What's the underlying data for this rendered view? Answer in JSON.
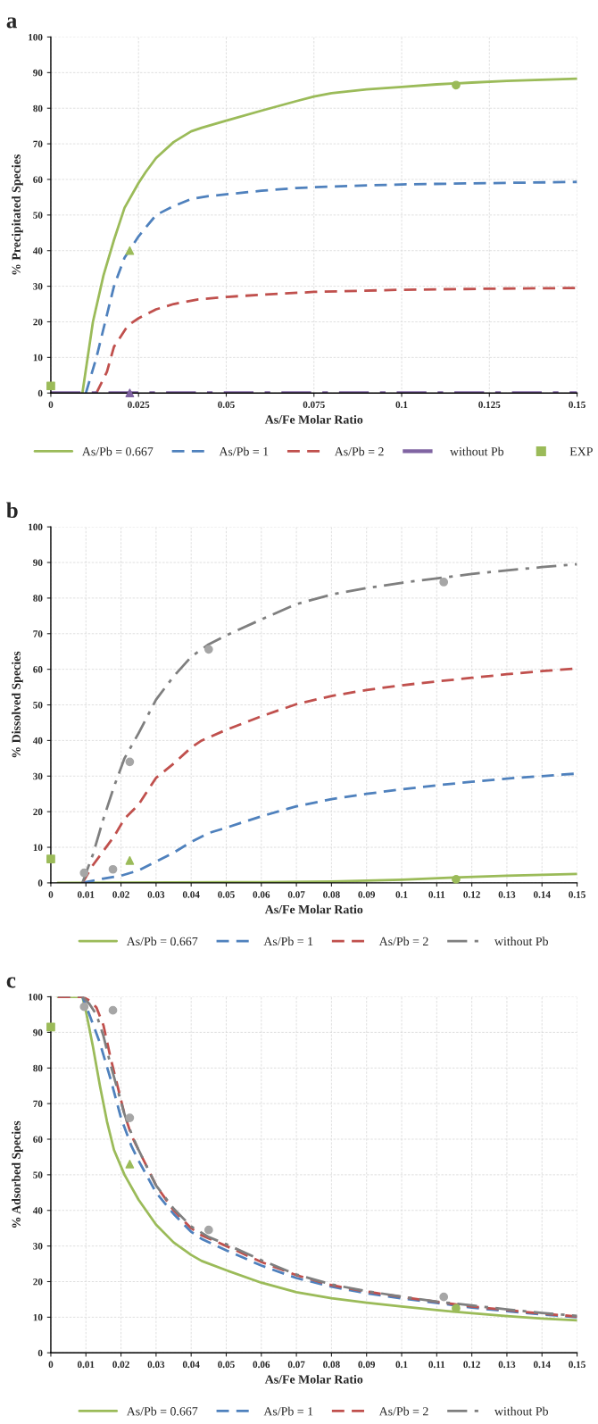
{
  "chart_data": [
    {
      "type": "line",
      "title": "a",
      "xlabel": "As/Fe Molar Ratio",
      "ylabel": "% Precipitated Species",
      "xlim": [
        0,
        0.15
      ],
      "ylim": [
        0,
        100
      ],
      "xticks": [
        0,
        0.025,
        0.05,
        0.075,
        0.1,
        0.125,
        0.15
      ],
      "yticks": [
        0,
        10,
        20,
        30,
        40,
        50,
        60,
        70,
        80,
        90,
        100
      ],
      "grid": true,
      "legend": "bottom",
      "series": [
        {
          "name": "As/Pb = 0.667",
          "color": "#9bbb59",
          "line_style": "solid",
          "x": [
            0.009,
            0.012,
            0.015,
            0.018,
            0.021,
            0.025,
            0.027,
            0.03,
            0.035,
            0.04,
            0.043,
            0.05,
            0.06,
            0.07,
            0.075,
            0.08,
            0.09,
            0.1,
            0.11,
            0.12,
            0.13,
            0.14,
            0.15
          ],
          "values": [
            0,
            20,
            33,
            43,
            52,
            59,
            62,
            66,
            70.5,
            73.5,
            74.5,
            76.5,
            79.3,
            82,
            83.3,
            84.2,
            85.3,
            86,
            86.7,
            87.2,
            87.7,
            88,
            88.3
          ]
        },
        {
          "name": "As/Pb = 1",
          "color": "#4f81bd",
          "line_style": "dashed",
          "x": [
            0.01,
            0.013,
            0.016,
            0.018,
            0.021,
            0.025,
            0.03,
            0.035,
            0.04,
            0.045,
            0.05,
            0.06,
            0.07,
            0.08,
            0.1,
            0.12,
            0.15
          ],
          "values": [
            0,
            10,
            22,
            30,
            38,
            44,
            50,
            52.5,
            54.5,
            55.3,
            55.8,
            56.8,
            57.6,
            58,
            58.6,
            58.9,
            59.3
          ]
        },
        {
          "name": "As/Pb = 2",
          "color": "#c0504d",
          "line_style": "dashed",
          "x": [
            0.013,
            0.016,
            0.018,
            0.02,
            0.022,
            0.025,
            0.03,
            0.035,
            0.042,
            0.05,
            0.06,
            0.075,
            0.1,
            0.125,
            0.15
          ],
          "values": [
            0,
            6,
            13,
            16,
            19,
            21,
            23.5,
            25,
            26.3,
            27,
            27.6,
            28.4,
            29,
            29.3,
            29.5
          ]
        },
        {
          "name": "without Pb",
          "color": "#8064a2",
          "line_style": "dashdot",
          "x": [
            0,
            0.15
          ],
          "values": [
            0,
            0
          ]
        },
        {
          "name": "EXP",
          "type": "scatter",
          "marker": "square",
          "color": "#9bbb59",
          "x": [
            0
          ],
          "values": [
            2
          ]
        },
        {
          "type": "scatter",
          "marker": "triangle",
          "color": "#9bbb59",
          "x": [
            0.0225
          ],
          "values": [
            40
          ]
        },
        {
          "type": "scatter",
          "marker": "circle",
          "color": "#9bbb59",
          "x": [
            0.1155
          ],
          "values": [
            86.5
          ]
        },
        {
          "type": "scatter",
          "marker": "triangle",
          "color": "#8064a2",
          "x": [
            0.0225
          ],
          "values": [
            0
          ]
        }
      ]
    },
    {
      "type": "line",
      "title": "b",
      "xlabel": "As/Fe Molar Ratio",
      "ylabel": "% Dissolved Species",
      "xlim": [
        0,
        0.15
      ],
      "ylim": [
        0,
        100
      ],
      "xticks": [
        0,
        0.01,
        0.02,
        0.03,
        0.04,
        0.05,
        0.06,
        0.07,
        0.08,
        0.09,
        0.1,
        0.11,
        0.12,
        0.13,
        0.14,
        0.15
      ],
      "yticks": [
        0,
        10,
        20,
        30,
        40,
        50,
        60,
        70,
        80,
        90,
        100
      ],
      "grid": true,
      "legend": "bottom",
      "series": [
        {
          "name": "As/Pb = 0.667",
          "color": "#9bbb59",
          "line_style": "solid",
          "x": [
            0.002,
            0.06,
            0.08,
            0.1,
            0.115,
            0.13,
            0.15
          ],
          "values": [
            0,
            0.2,
            0.4,
            0.9,
            1.5,
            2,
            2.5
          ]
        },
        {
          "name": "As/Pb = 1",
          "color": "#4f81bd",
          "line_style": "dashed",
          "x": [
            0.009,
            0.015,
            0.02,
            0.025,
            0.03,
            0.035,
            0.04,
            0.045,
            0.05,
            0.06,
            0.07,
            0.08,
            0.09,
            0.1,
            0.11,
            0.12,
            0.13,
            0.14,
            0.15
          ],
          "values": [
            0,
            1.2,
            2,
            3.5,
            6,
            8.5,
            11.5,
            14,
            15.5,
            18.7,
            21.5,
            23.5,
            25,
            26.3,
            27.4,
            28.4,
            29.3,
            30,
            30.7
          ]
        },
        {
          "name": "As/Pb = 2",
          "color": "#c0504d",
          "line_style": "dashed",
          "x": [
            0.009,
            0.012,
            0.015,
            0.018,
            0.021,
            0.025,
            0.03,
            0.035,
            0.04,
            0.043,
            0.05,
            0.06,
            0.07,
            0.08,
            0.09,
            0.1,
            0.11,
            0.12,
            0.13,
            0.14,
            0.15
          ],
          "values": [
            0,
            5,
            9,
            13,
            18,
            22,
            29.5,
            33.5,
            38,
            40,
            43,
            46.8,
            50.2,
            52.5,
            54.2,
            55.5,
            56.6,
            57.6,
            58.6,
            59.5,
            60.2
          ]
        },
        {
          "name": "without Pb",
          "color": "#7f7f7f",
          "line_style": "dashdot",
          "x": [
            0.009,
            0.012,
            0.015,
            0.018,
            0.021,
            0.025,
            0.03,
            0.035,
            0.04,
            0.045,
            0.05,
            0.06,
            0.07,
            0.08,
            0.09,
            0.1,
            0.11,
            0.12,
            0.13,
            0.14,
            0.15
          ],
          "values": [
            0,
            8,
            18,
            27,
            35,
            42,
            51.5,
            58,
            63.5,
            67,
            69.5,
            74,
            78.3,
            81,
            82.8,
            84.3,
            85.5,
            86.8,
            87.8,
            88.7,
            89.5
          ]
        },
        {
          "type": "scatter",
          "marker": "square",
          "color": "#9bbb59",
          "x": [
            0
          ],
          "values": [
            6.7
          ]
        },
        {
          "type": "scatter",
          "marker": "triangle",
          "color": "#9bbb59",
          "x": [
            0.0225
          ],
          "values": [
            6.3
          ]
        },
        {
          "type": "scatter",
          "marker": "circle",
          "color": "#9bbb59",
          "x": [
            0.1155
          ],
          "values": [
            1
          ]
        },
        {
          "type": "scatter",
          "marker": "circle",
          "color": "#a6a6a6",
          "x": [
            0.0095,
            0.0177,
            0.0225,
            0.045,
            0.112
          ],
          "values": [
            2.8,
            3.8,
            34,
            65.6,
            84.5
          ]
        }
      ]
    },
    {
      "type": "line",
      "title": "c",
      "xlabel": "As/Fe Molar Ratio",
      "ylabel": "% Adsorbed Species",
      "xlim": [
        0,
        0.15
      ],
      "ylim": [
        0,
        100
      ],
      "xticks": [
        0,
        0.01,
        0.02,
        0.03,
        0.04,
        0.05,
        0.06,
        0.07,
        0.08,
        0.09,
        0.1,
        0.11,
        0.12,
        0.13,
        0.14,
        0.15
      ],
      "yticks": [
        0,
        10,
        20,
        30,
        40,
        50,
        60,
        70,
        80,
        90,
        100
      ],
      "grid": true,
      "legend": "bottom",
      "series": [
        {
          "name": "As/Pb = 0.667",
          "color": "#9bbb59",
          "line_style": "solid",
          "x": [
            0.002,
            0.009,
            0.01,
            0.012,
            0.014,
            0.016,
            0.018,
            0.021,
            0.025,
            0.03,
            0.035,
            0.04,
            0.043,
            0.05,
            0.06,
            0.07,
            0.08,
            0.09,
            0.1,
            0.11,
            0.12,
            0.13,
            0.14,
            0.15
          ],
          "values": [
            100,
            100,
            96,
            86,
            75,
            65,
            57,
            50,
            43,
            36,
            31,
            27.5,
            25.8,
            23.2,
            19.7,
            17,
            15.3,
            14.1,
            13,
            12,
            11.1,
            10.3,
            9.6,
            9.1
          ]
        },
        {
          "name": "As/Pb = 1",
          "color": "#4f81bd",
          "line_style": "dashed",
          "x": [
            0.002,
            0.009,
            0.011,
            0.014,
            0.017,
            0.02,
            0.023,
            0.025,
            0.03,
            0.035,
            0.04,
            0.043,
            0.05,
            0.06,
            0.07,
            0.08,
            0.09,
            0.1,
            0.11,
            0.12,
            0.13,
            0.14,
            0.15
          ],
          "values": [
            100,
            100,
            95,
            87,
            77,
            66,
            58,
            54,
            45,
            39,
            34,
            32,
            28.8,
            24.5,
            21,
            18.6,
            16.7,
            15.3,
            14,
            12.7,
            11.7,
            10.8,
            10
          ]
        },
        {
          "name": "As/Pb = 2",
          "color": "#c0504d",
          "line_style": "dashed",
          "x": [
            0.002,
            0.009,
            0.011,
            0.013,
            0.015,
            0.017,
            0.019,
            0.021,
            0.023,
            0.025,
            0.03,
            0.035,
            0.04,
            0.043,
            0.05,
            0.06,
            0.07,
            0.08,
            0.09,
            0.1,
            0.11,
            0.12,
            0.13,
            0.14,
            0.15
          ],
          "values": [
            100,
            100,
            99,
            97,
            92,
            83,
            75,
            67,
            61,
            57,
            47,
            40,
            35,
            33,
            30,
            25.5,
            21.8,
            19,
            17.2,
            15.7,
            14.3,
            13,
            12,
            11,
            10.2
          ]
        },
        {
          "name": "without Pb",
          "color": "#7f7f7f",
          "line_style": "dashdot",
          "x": [
            0.009,
            0.011,
            0.013,
            0.015,
            0.017,
            0.019,
            0.021,
            0.023,
            0.025,
            0.03,
            0.035,
            0.04,
            0.045,
            0.05,
            0.06,
            0.07,
            0.08,
            0.09,
            0.1,
            0.11,
            0.12,
            0.13,
            0.14,
            0.15
          ],
          "values": [
            100,
            98,
            95,
            89,
            81,
            74,
            67,
            61.5,
            57,
            47,
            40.5,
            35.5,
            32.5,
            30.5,
            26,
            22,
            19.2,
            17.3,
            15.8,
            14.4,
            13.3,
            12.2,
            11.2,
            10.4
          ]
        },
        {
          "type": "scatter",
          "marker": "square",
          "color": "#9bbb59",
          "x": [
            0
          ],
          "values": [
            91.5
          ]
        },
        {
          "type": "scatter",
          "marker": "triangle",
          "color": "#9bbb59",
          "x": [
            0.0225
          ],
          "values": [
            53
          ]
        },
        {
          "type": "scatter",
          "marker": "circle",
          "color": "#9bbb59",
          "x": [
            0.1155
          ],
          "values": [
            12.5
          ]
        },
        {
          "type": "scatter",
          "marker": "circle",
          "color": "#a6a6a6",
          "x": [
            0.0095,
            0.0177,
            0.0225,
            0.045,
            0.112
          ],
          "values": [
            97.2,
            96.2,
            66,
            34.5,
            15.7
          ]
        }
      ]
    }
  ]
}
